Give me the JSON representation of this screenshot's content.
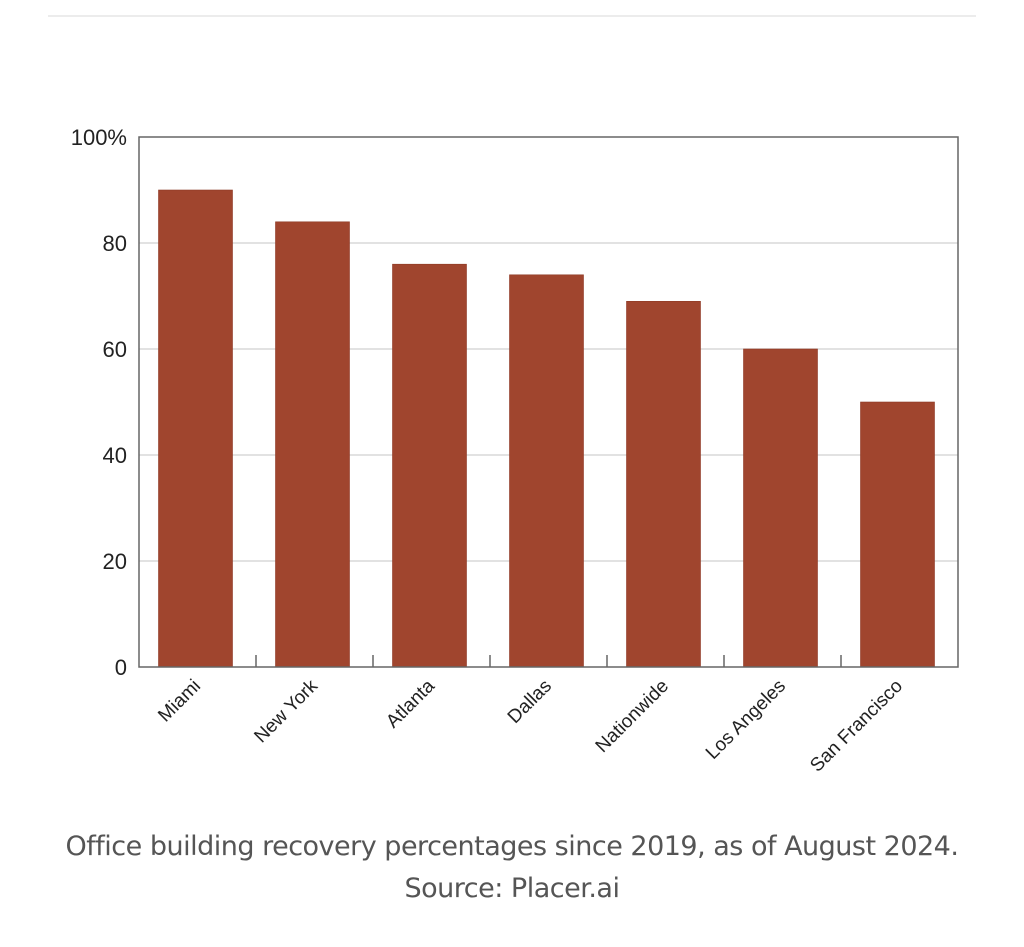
{
  "chart_data": {
    "type": "bar",
    "title": "",
    "xlabel": "",
    "ylabel": "",
    "categories": [
      "Miami",
      "New York",
      "Atlanta",
      "Dallas",
      "Nationwide",
      "Los Angeles",
      "San Francisco"
    ],
    "values": [
      90,
      84,
      76,
      74,
      69,
      60,
      50
    ],
    "ylim": [
      0,
      100
    ],
    "yticks": [
      0,
      20,
      40,
      60,
      80,
      100
    ],
    "ytick_labels": [
      "0",
      "20",
      "40",
      "60",
      "80",
      "100%"
    ],
    "grid": true,
    "legend": "none",
    "bar_color": "#a0452e",
    "grid_color": "#d9d9d9",
    "axis_color": "#666666"
  },
  "caption": "Office building recovery percentages since 2019, as of August 2024. Source: Placer.ai"
}
